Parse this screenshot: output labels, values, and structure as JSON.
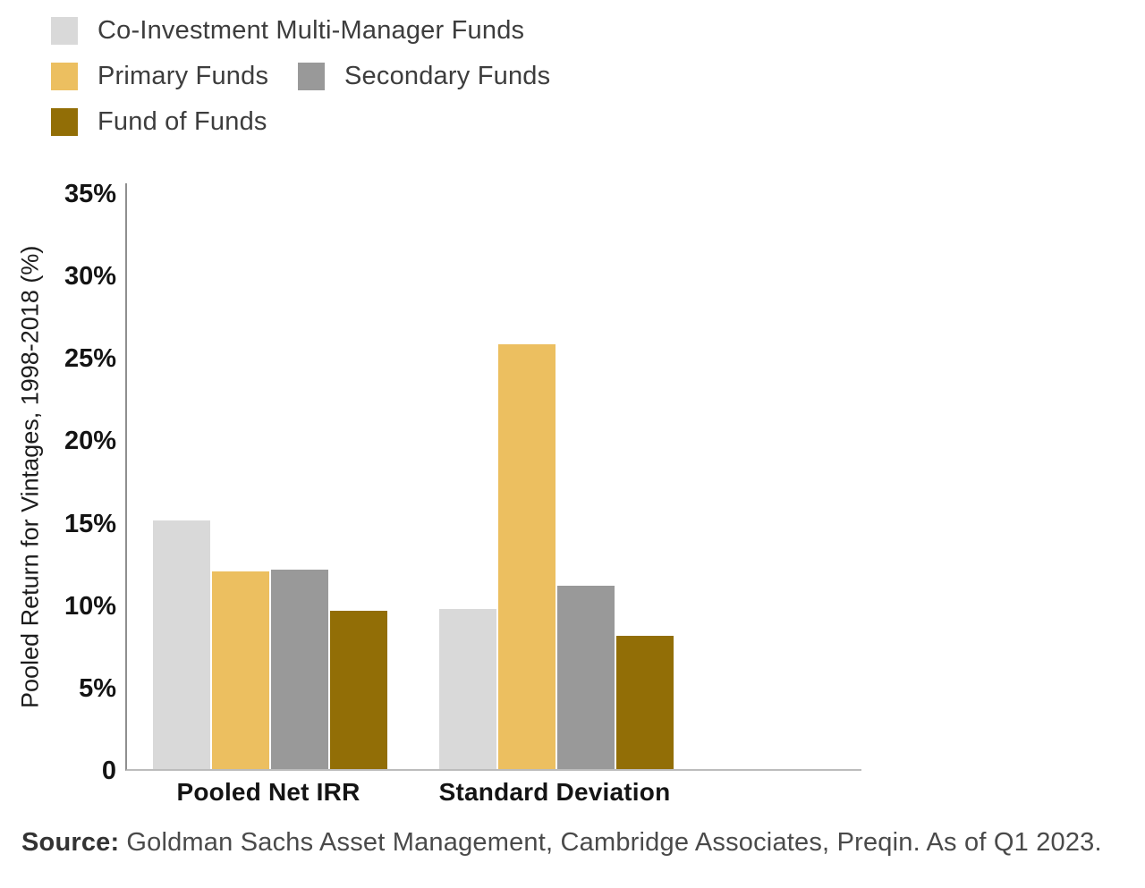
{
  "chart_data": {
    "type": "bar",
    "title": "",
    "categories": [
      "Pooled Net IRR",
      "Standard Deviation"
    ],
    "series": [
      {
        "name": "Co-Investment Multi-Manager Funds",
        "color": "#D9D9D9",
        "values": [
          15.1,
          9.7
        ]
      },
      {
        "name": "Primary Funds",
        "color": "#ECBF60",
        "values": [
          12.0,
          25.8
        ]
      },
      {
        "name": "Secondary Funds",
        "color": "#999999",
        "values": [
          12.1,
          11.1
        ]
      },
      {
        "name": "Fund of Funds",
        "color": "#926E06",
        "values": [
          9.6,
          8.1
        ]
      }
    ],
    "xlabel": "",
    "ylabel": "Pooled Return for Vintages, 1998-2018 (%)",
    "ylim": [
      0,
      35
    ],
    "yticks": [
      "35%",
      "30%",
      "25%",
      "20%",
      "15%",
      "10%",
      "5%",
      "0"
    ],
    "ytick_values": [
      35,
      30,
      25,
      20,
      15,
      10,
      5,
      0
    ],
    "grid": false,
    "legend_position": "top-left"
  },
  "source": {
    "prefix": "Source:",
    "text": "Goldman Sachs Asset Management, Cambridge Associates, Preqin. As of Q1 2023."
  }
}
